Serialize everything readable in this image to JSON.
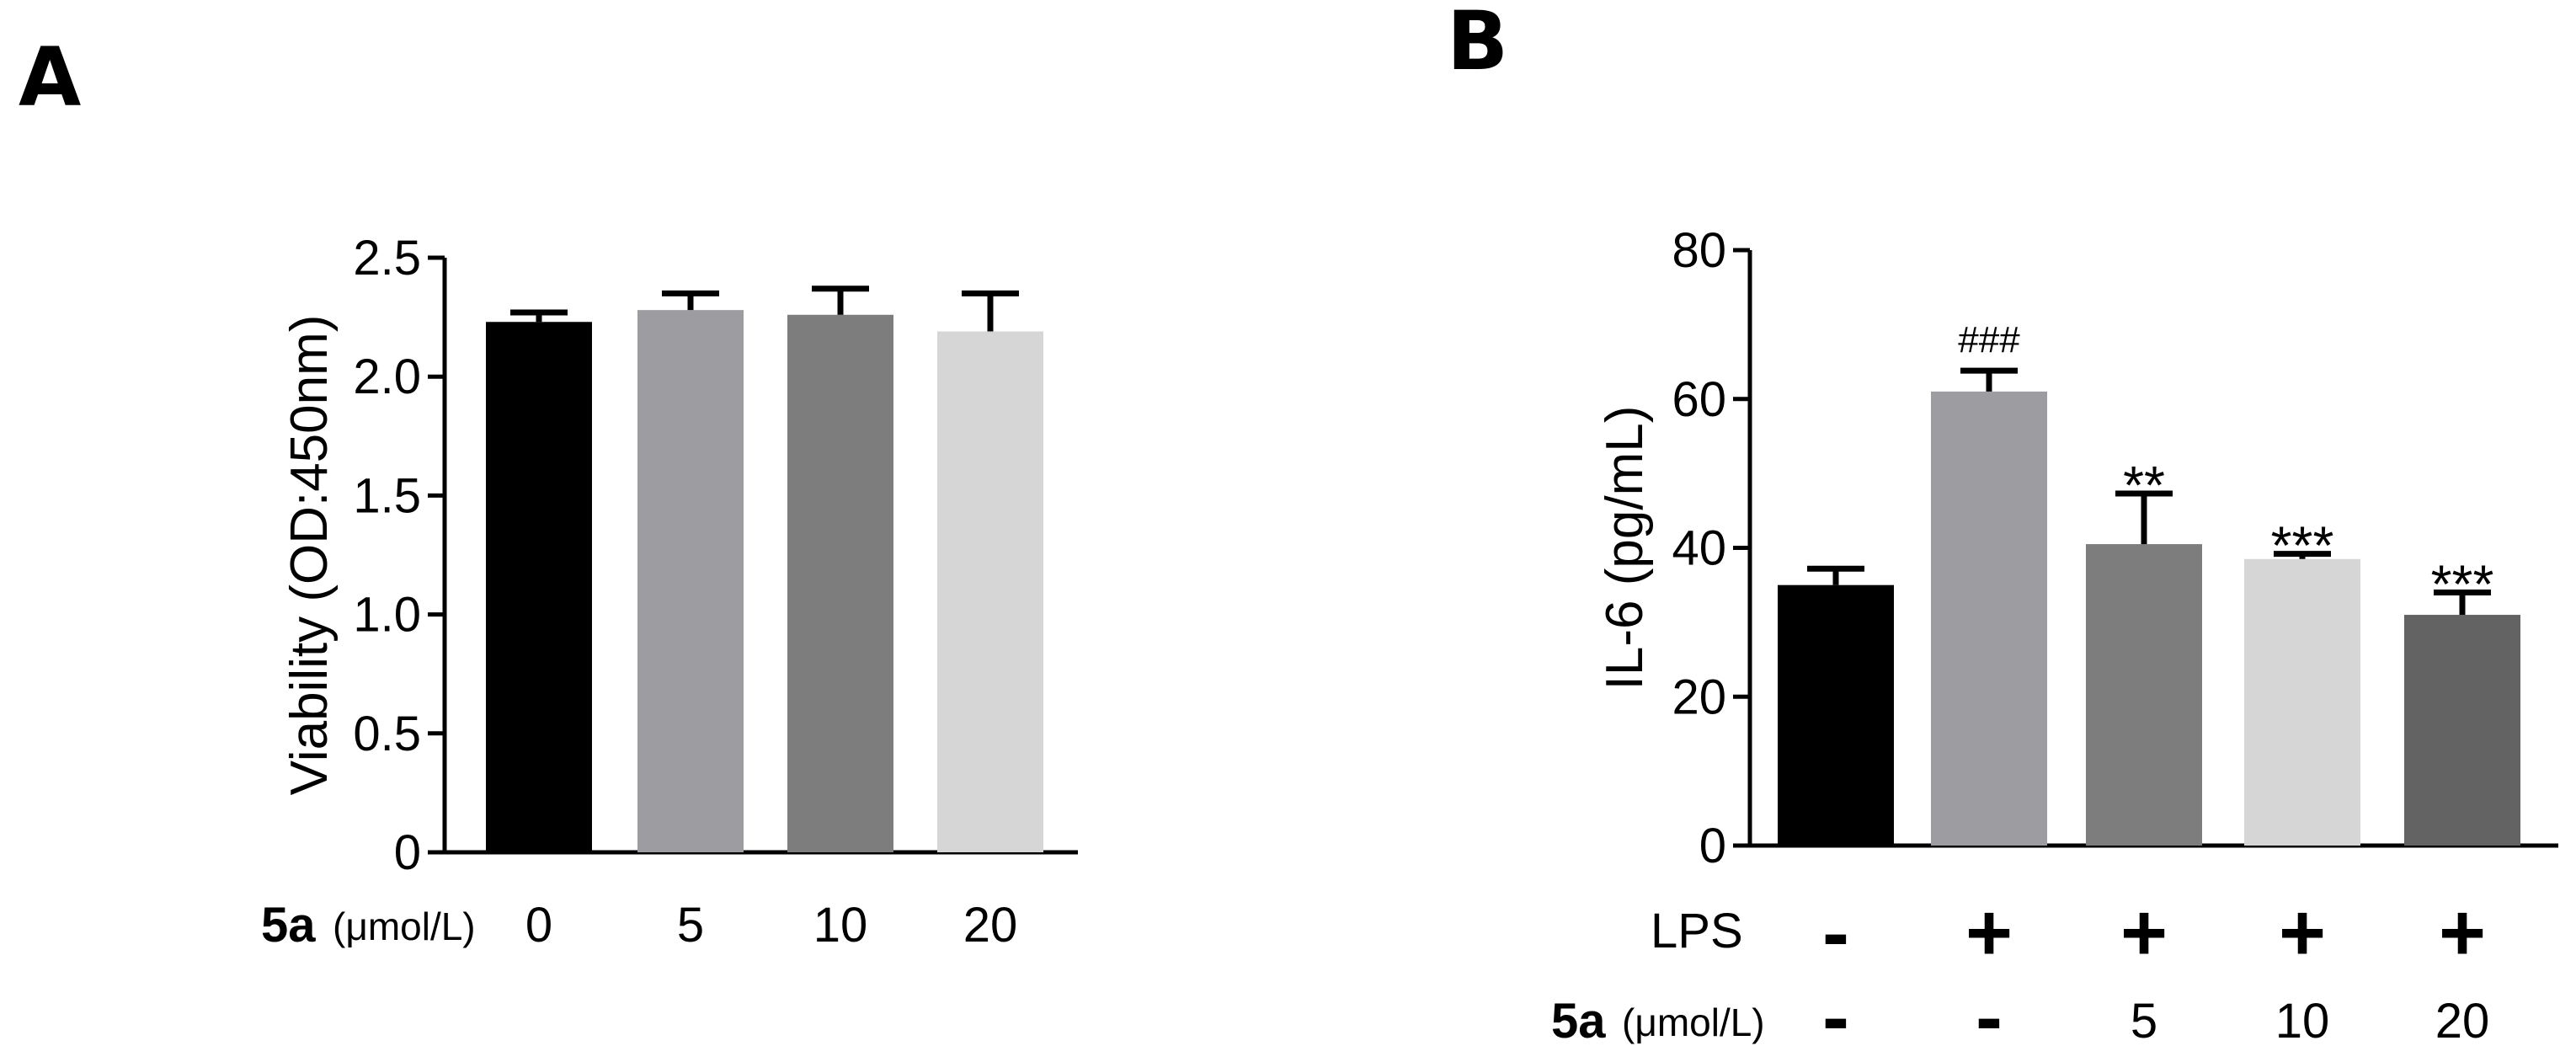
{
  "panels": {
    "a": {
      "letter": "A"
    },
    "b": {
      "letter": "B"
    }
  },
  "chart_data": [
    {
      "type": "bar",
      "panel": "A",
      "ylabel": "Viability (OD:450nm)",
      "ylim": [
        0,
        2.5
      ],
      "yticks": [
        "0",
        "0.5",
        "1.0",
        "1.5",
        "2.0",
        "2.5"
      ],
      "row_label_bold": "5a",
      "row_label_unit": "(μmol/L)",
      "categories": [
        "0",
        "5",
        "10",
        "20"
      ],
      "values": [
        2.23,
        2.28,
        2.26,
        2.19
      ],
      "errors": [
        0.04,
        0.07,
        0.11,
        0.16
      ],
      "colors": [
        "#000000",
        "#9d9da1",
        "#7d7d7d",
        "#d6d6d6"
      ]
    },
    {
      "type": "bar",
      "panel": "B",
      "ylabel": "IL-6 (pg/mL)",
      "ylim": [
        0,
        80
      ],
      "yticks": [
        "0",
        "20",
        "40",
        "60",
        "80"
      ],
      "lps_label": "LPS",
      "lps": [
        "-",
        "+",
        "+",
        "+",
        "+"
      ],
      "row_label_bold": "5a",
      "row_label_unit": "(μmol/L)",
      "dose": [
        "-",
        "-",
        "5",
        "10",
        "20"
      ],
      "values": [
        35,
        61,
        40.5,
        38.5,
        31
      ],
      "errors": [
        2.2,
        2.8,
        6.8,
        0.7,
        3.0
      ],
      "annotations": [
        "",
        "###",
        "**",
        "***",
        "***"
      ],
      "colors": [
        "#000000",
        "#9d9da1",
        "#7d7d7d",
        "#d6d6d6",
        "#636363"
      ]
    }
  ]
}
